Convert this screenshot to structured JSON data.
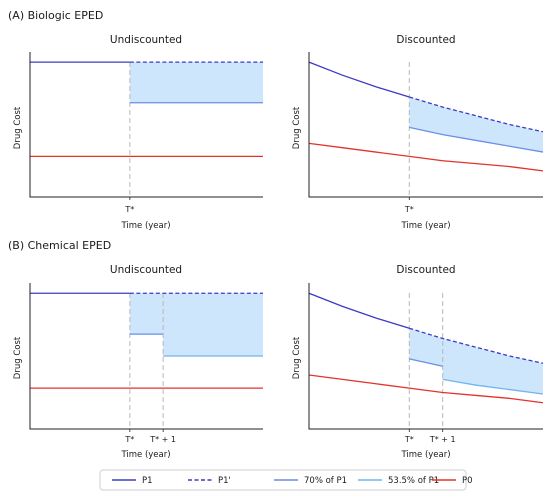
{
  "sections": [
    {
      "label": "(A) Biologic EPED"
    },
    {
      "label": "(B) Chemical EPED"
    }
  ],
  "chart_data": [
    {
      "type": "line",
      "section": 0,
      "title": "Undiscounted",
      "xlabel": "Time (year)",
      "ylabel": "Drug Cost",
      "xlim": [
        0,
        7
      ],
      "ylim": [
        0,
        1
      ],
      "ticks": [
        {
          "x": 3,
          "label": "T*"
        }
      ],
      "series": [
        {
          "name": "P1",
          "x": [
            0,
            3
          ],
          "y": [
            0.93,
            0.93
          ]
        },
        {
          "name": "P1'",
          "x": [
            3,
            7
          ],
          "y": [
            0.93,
            0.93
          ]
        },
        {
          "name": "70% of P1",
          "x": [
            3,
            7
          ],
          "y": [
            0.65,
            0.65
          ]
        },
        {
          "name": "P0",
          "x": [
            0,
            7
          ],
          "y": [
            0.28,
            0.28
          ]
        }
      ],
      "shaded": {
        "x": [
          3,
          7
        ],
        "upper": [
          0.93,
          0.93
        ],
        "lower": [
          0.65,
          0.65
        ]
      }
    },
    {
      "type": "line",
      "section": 0,
      "title": "Discounted",
      "xlabel": "Time (year)",
      "ylabel": "Drug Cost",
      "xlim": [
        0,
        7
      ],
      "ylim": [
        0,
        1
      ],
      "ticks": [
        {
          "x": 3,
          "label": "T*"
        }
      ],
      "series": [
        {
          "name": "P1",
          "x": [
            0,
            1,
            2,
            3
          ],
          "y": [
            0.93,
            0.84,
            0.76,
            0.69
          ]
        },
        {
          "name": "P1'",
          "x": [
            3,
            4,
            5,
            6,
            7
          ],
          "y": [
            0.69,
            0.62,
            0.56,
            0.5,
            0.45
          ]
        },
        {
          "name": "70% of P1",
          "x": [
            3,
            4,
            5,
            6,
            7
          ],
          "y": [
            0.48,
            0.43,
            0.39,
            0.35,
            0.31
          ]
        },
        {
          "name": "P0",
          "x": [
            0,
            1,
            2,
            3,
            4,
            5,
            6,
            7
          ],
          "y": [
            0.37,
            0.34,
            0.31,
            0.28,
            0.25,
            0.23,
            0.21,
            0.18
          ]
        }
      ],
      "shaded": {
        "x": [
          3,
          4,
          5,
          6,
          7
        ],
        "upper": [
          0.69,
          0.62,
          0.56,
          0.5,
          0.45
        ],
        "lower": [
          0.48,
          0.43,
          0.39,
          0.35,
          0.31
        ]
      }
    },
    {
      "type": "line",
      "section": 1,
      "title": "Undiscounted",
      "xlabel": "Time (year)",
      "ylabel": "Drug Cost",
      "xlim": [
        0,
        7
      ],
      "ylim": [
        0,
        1
      ],
      "ticks": [
        {
          "x": 3,
          "label": "T*"
        },
        {
          "x": 4,
          "label": "T* + 1"
        }
      ],
      "series": [
        {
          "name": "P1",
          "x": [
            0,
            3
          ],
          "y": [
            0.93,
            0.93
          ]
        },
        {
          "name": "P1'",
          "x": [
            3,
            7
          ],
          "y": [
            0.93,
            0.93
          ]
        },
        {
          "name": "70% of P1",
          "x": [
            3,
            4
          ],
          "y": [
            0.65,
            0.65
          ]
        },
        {
          "name": "53.5% of P1",
          "x": [
            4,
            7
          ],
          "y": [
            0.5,
            0.5
          ]
        },
        {
          "name": "P0",
          "x": [
            0,
            7
          ],
          "y": [
            0.28,
            0.28
          ]
        }
      ],
      "shaded": {
        "x": [
          3,
          4,
          4,
          7
        ],
        "upper": [
          0.93,
          0.93,
          0.93,
          0.93
        ],
        "lower": [
          0.65,
          0.65,
          0.5,
          0.5
        ]
      }
    },
    {
      "type": "line",
      "section": 1,
      "title": "Discounted",
      "xlabel": "Time (year)",
      "ylabel": "Drug Cost",
      "xlim": [
        0,
        7
      ],
      "ylim": [
        0,
        1
      ],
      "ticks": [
        {
          "x": 3,
          "label": "T*"
        },
        {
          "x": 4,
          "label": "T* + 1"
        }
      ],
      "series": [
        {
          "name": "P1",
          "x": [
            0,
            1,
            2,
            3
          ],
          "y": [
            0.93,
            0.84,
            0.76,
            0.69
          ]
        },
        {
          "name": "P1'",
          "x": [
            3,
            4,
            5,
            6,
            7
          ],
          "y": [
            0.69,
            0.62,
            0.56,
            0.5,
            0.45
          ]
        },
        {
          "name": "70% of P1",
          "x": [
            3,
            4
          ],
          "y": [
            0.48,
            0.43
          ]
        },
        {
          "name": "53.5% of P1",
          "x": [
            4,
            5,
            6,
            7
          ],
          "y": [
            0.34,
            0.3,
            0.27,
            0.24
          ]
        },
        {
          "name": "P0",
          "x": [
            0,
            1,
            2,
            3,
            4,
            5,
            6,
            7
          ],
          "y": [
            0.37,
            0.34,
            0.31,
            0.28,
            0.25,
            0.23,
            0.21,
            0.18
          ]
        }
      ],
      "shaded": {
        "x": [
          3,
          4,
          4,
          5,
          6,
          7
        ],
        "upper": [
          0.69,
          0.62,
          0.62,
          0.56,
          0.5,
          0.45
        ],
        "lower": [
          0.48,
          0.43,
          0.34,
          0.3,
          0.27,
          0.24
        ]
      }
    }
  ],
  "legend": {
    "placement": "bottom",
    "items": [
      {
        "name": "P1",
        "color": "#3b3bc4",
        "style": "solid"
      },
      {
        "name": "P1'",
        "color": "#3b3bc4",
        "style": "dashed"
      },
      {
        "name": "70% of P1",
        "color": "#6a8fe8",
        "style": "solid"
      },
      {
        "name": "53.5% of P1",
        "color": "#6fb5ee",
        "style": "solid"
      },
      {
        "name": "P0",
        "color": "#e3332b",
        "style": "solid"
      }
    ]
  },
  "colors": {
    "shade": "#cde6fb",
    "guide": "#b8b8b8",
    "axis": "#222222"
  }
}
